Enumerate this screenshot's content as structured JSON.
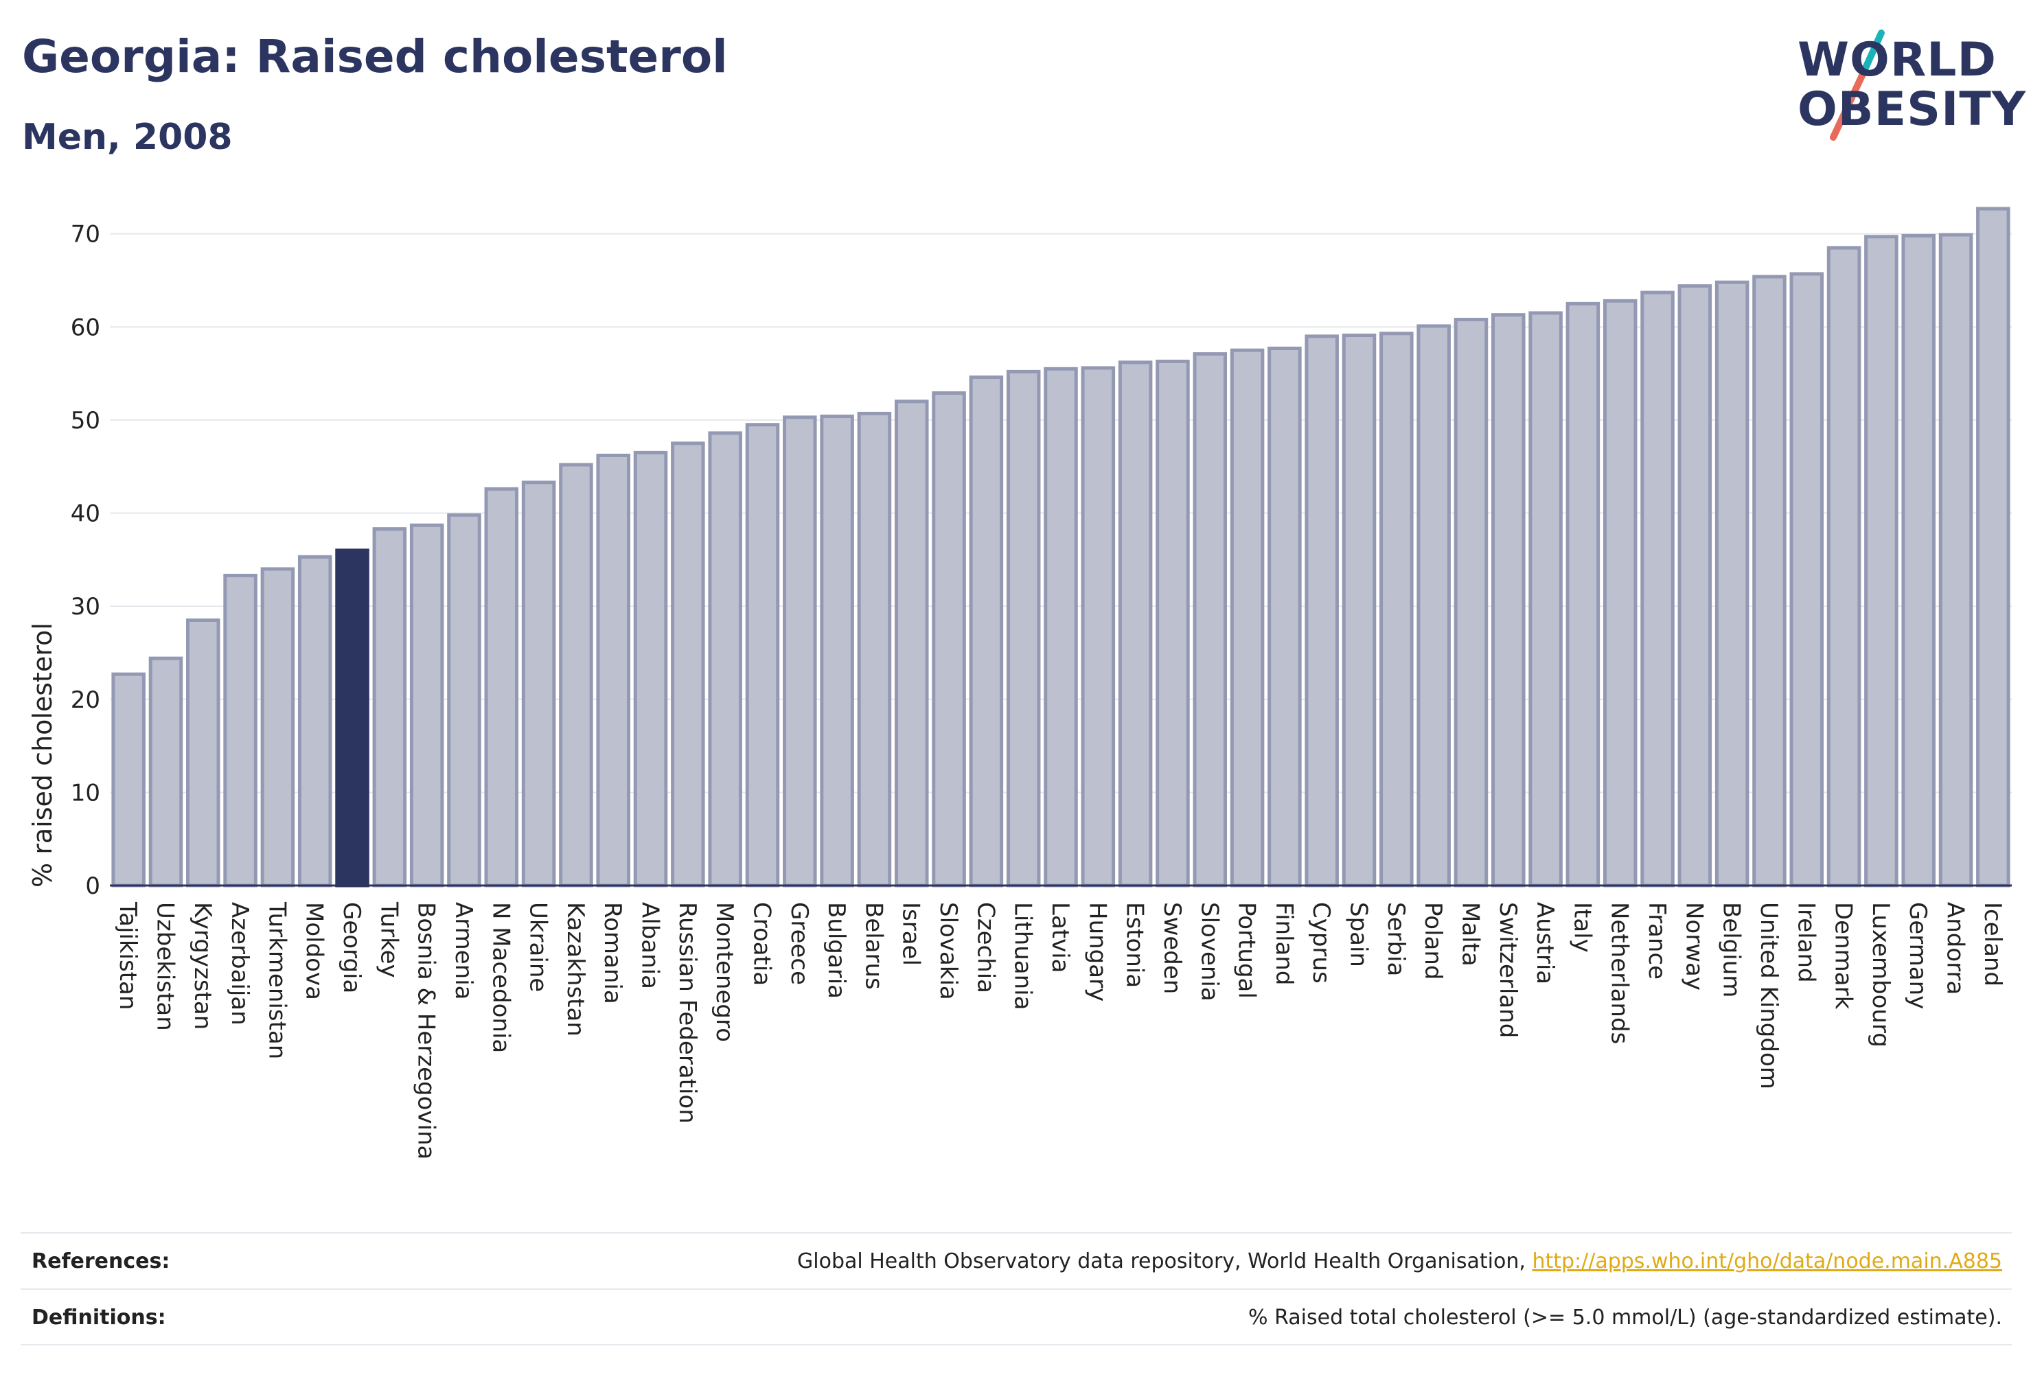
{
  "header": {
    "title": "Georgia: Raised cholesterol",
    "subtitle": "Men, 2008"
  },
  "logo": {
    "line1": "WORLD",
    "line2": "OBESITY"
  },
  "colors": {
    "highlight": "#2b3560",
    "bar_fill": "#bcc0cf",
    "bar_stroke": "#9499b3",
    "logo_slash_a": "#1ab3b8",
    "logo_slash_b": "#e86a5a",
    "link": "#e0aa14"
  },
  "chart_data": {
    "type": "bar",
    "ylabel": "% raised cholesterol",
    "ylim": [
      0,
      73
    ],
    "yticks": [
      0,
      10,
      20,
      30,
      40,
      50,
      60,
      70
    ],
    "grid": true,
    "highlight_category": "Georgia",
    "categories": [
      "Tajikistan",
      "Uzbekistan",
      "Kyrgyzstan",
      "Azerbaijan",
      "Turkmenistan",
      "Moldova",
      "Georgia",
      "Turkey",
      "Bosnia & Herzegovina",
      "Armenia",
      "N Macedonia",
      "Ukraine",
      "Kazakhstan",
      "Romania",
      "Albania",
      "Russian Federation",
      "Montenegro",
      "Croatia",
      "Greece",
      "Bulgaria",
      "Belarus",
      "Israel",
      "Slovakia",
      "Czechia",
      "Lithuania",
      "Latvia",
      "Hungary",
      "Estonia",
      "Sweden",
      "Slovenia",
      "Portugal",
      "Finland",
      "Cyprus",
      "Spain",
      "Serbia",
      "Poland",
      "Malta",
      "Switzerland",
      "Austria",
      "Italy",
      "Netherlands",
      "France",
      "Norway",
      "Belgium",
      "United Kingdom",
      "Ireland",
      "Denmark",
      "Luxembourg",
      "Germany",
      "Andorra",
      "Iceland"
    ],
    "values": [
      22.7,
      24.4,
      28.5,
      33.3,
      34.0,
      35.3,
      36.0,
      38.3,
      38.7,
      39.8,
      42.6,
      43.3,
      45.2,
      46.2,
      46.5,
      47.5,
      48.6,
      49.5,
      50.3,
      50.4,
      50.7,
      52.0,
      52.9,
      54.6,
      55.2,
      55.5,
      55.6,
      56.2,
      56.3,
      57.1,
      57.5,
      57.7,
      59.0,
      59.1,
      59.3,
      60.1,
      60.8,
      61.3,
      61.5,
      62.5,
      62.8,
      63.7,
      64.4,
      64.8,
      65.4,
      65.7,
      68.5,
      69.7,
      69.8,
      69.9,
      72.7
    ]
  },
  "footer": {
    "references_label": "References:",
    "references_text": "Global Health Observatory data repository, World Health Organisation, ",
    "references_link": "http://apps.who.int/gho/data/node.main.A885",
    "definitions_label": "Definitions:",
    "definitions_text": "% Raised total cholesterol (>= 5.0 mmol/L) (age-standardized estimate)."
  }
}
